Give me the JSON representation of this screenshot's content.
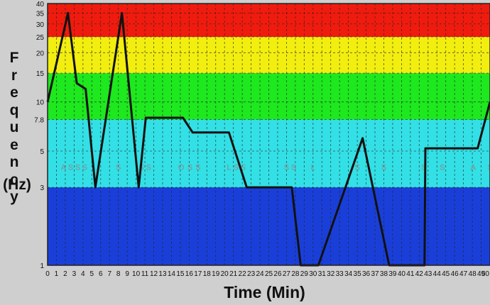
{
  "chart_data": {
    "type": "line",
    "title": "",
    "xlabel": "Time (Min)",
    "ylabel": "Frequency",
    "ylabel_unit": "(Hz)",
    "xlim": [
      0,
      50
    ],
    "ylim": [
      1,
      40
    ],
    "y_scale": "log",
    "grid": true,
    "x_ticks": [
      "0",
      "1",
      "2",
      "3",
      "4",
      "5",
      "6",
      "7",
      "8",
      "9",
      "10",
      "11",
      "12",
      "13",
      "14",
      "15",
      "16",
      "17",
      "18",
      "19",
      "20",
      "21",
      "22",
      "23",
      "24",
      "25",
      "26",
      "27",
      "28",
      "29",
      "30",
      "31",
      "32",
      "33",
      "34",
      "35",
      "36",
      "37",
      "38",
      "39",
      "40",
      "41",
      "42",
      "43",
      "44",
      "45",
      "46",
      "47",
      "48",
      "49",
      "50"
    ],
    "y_ticks": [
      1,
      3,
      5,
      7.8,
      10,
      15,
      20,
      25,
      30,
      35,
      40
    ],
    "y_tick_labels": [
      "1",
      "3",
      "5",
      "7.8",
      "10",
      "15",
      "20",
      "25",
      "30",
      "35",
      "40"
    ],
    "bands": [
      {
        "from": 1,
        "to": 3,
        "color": "#1a3fd8"
      },
      {
        "from": 3,
        "to": 7.8,
        "color": "#33e0e6"
      },
      {
        "from": 7.8,
        "to": 15,
        "color": "#1ee81e"
      },
      {
        "from": 15,
        "to": 25,
        "color": "#f2ee10"
      },
      {
        "from": 25,
        "to": 40,
        "color": "#ef1b0e"
      }
    ],
    "series": [
      {
        "color": "#111111",
        "x": [
          0,
          2.3,
          3.3,
          4.3,
          5.4,
          8.4,
          10.3,
          11.1,
          15.3,
          16.4,
          20.5,
          22.5,
          27.6,
          28.6,
          30.6,
          35.6,
          38.6,
          42.6,
          42.7,
          48.6,
          50
        ],
        "y": [
          10,
          35,
          13,
          12,
          3,
          35,
          3,
          8,
          8,
          6.5,
          6.5,
          3,
          3,
          1,
          1,
          6,
          1,
          1,
          5.2,
          5.2,
          10
        ]
      }
    ],
    "annotations": [
      {
        "x": 1.8,
        "text": "A"
      },
      {
        "x": 2.6,
        "text": "S"
      },
      {
        "x": 3.4,
        "text": "S"
      },
      {
        "x": 4.2,
        "text": "S"
      },
      {
        "x": 8.0,
        "text": "S"
      },
      {
        "x": 10.6,
        "text": "S"
      },
      {
        "x": 11.4,
        "text": "S"
      },
      {
        "x": 15.1,
        "text": "O"
      },
      {
        "x": 16.1,
        "text": "S"
      },
      {
        "x": 17.0,
        "text": "S"
      },
      {
        "x": 20.5,
        "text": "L"
      },
      {
        "x": 21.3,
        "text": "S"
      },
      {
        "x": 22.1,
        "text": "S"
      },
      {
        "x": 27.0,
        "text": "S"
      },
      {
        "x": 27.8,
        "text": "S"
      },
      {
        "x": 30.0,
        "text": "L"
      },
      {
        "x": 35.0,
        "text": "S"
      },
      {
        "x": 38.0,
        "text": "S"
      },
      {
        "x": 42.5,
        "text": "S"
      },
      {
        "x": 44.6,
        "text": "S"
      },
      {
        "x": 48.1,
        "text": "A"
      },
      {
        "x": 50.0,
        "text": "S"
      }
    ]
  }
}
